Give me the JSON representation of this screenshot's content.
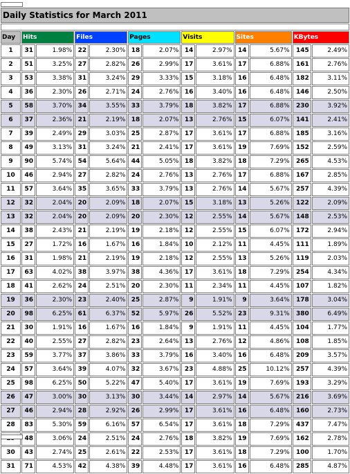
{
  "title": "Daily Statistics for March 2011",
  "headers": {
    "day": "Day",
    "hits": "Hits",
    "files": "Files",
    "pages": "Pages",
    "visits": "Visits",
    "sites": "Sites",
    "kbytes": "KBytes"
  },
  "colors": {
    "hits": "#008040",
    "files": "#0040ff",
    "pages": "#00e0ff",
    "visits": "#ffff00",
    "sites": "#ff8000",
    "kbytes": "#ff0000",
    "title_bg": "#c0c0c0",
    "highlight_row": "#d8d8e8"
  },
  "highlighted_days": [
    "5",
    "6",
    "12",
    "13",
    "19",
    "20",
    "26",
    "27"
  ],
  "rows": [
    {
      "day": "1",
      "hits": "31",
      "hits_pct": "1.98%",
      "files": "22",
      "files_pct": "2.30%",
      "pages": "18",
      "pages_pct": "2.07%",
      "visits": "14",
      "visits_pct": "2.97%",
      "sites": "14",
      "sites_pct": "5.67%",
      "kbytes": "145",
      "kbytes_pct": "2.49%"
    },
    {
      "day": "2",
      "hits": "51",
      "hits_pct": "3.25%",
      "files": "27",
      "files_pct": "2.82%",
      "pages": "26",
      "pages_pct": "2.99%",
      "visits": "17",
      "visits_pct": "3.61%",
      "sites": "17",
      "sites_pct": "6.88%",
      "kbytes": "161",
      "kbytes_pct": "2.76%"
    },
    {
      "day": "3",
      "hits": "53",
      "hits_pct": "3.38%",
      "files": "31",
      "files_pct": "3.24%",
      "pages": "29",
      "pages_pct": "3.33%",
      "visits": "15",
      "visits_pct": "3.18%",
      "sites": "16",
      "sites_pct": "6.48%",
      "kbytes": "182",
      "kbytes_pct": "3.11%"
    },
    {
      "day": "4",
      "hits": "36",
      "hits_pct": "2.30%",
      "files": "26",
      "files_pct": "2.71%",
      "pages": "24",
      "pages_pct": "2.76%",
      "visits": "16",
      "visits_pct": "3.40%",
      "sites": "16",
      "sites_pct": "6.48%",
      "kbytes": "146",
      "kbytes_pct": "2.50%"
    },
    {
      "day": "5",
      "hits": "58",
      "hits_pct": "3.70%",
      "files": "34",
      "files_pct": "3.55%",
      "pages": "33",
      "pages_pct": "3.79%",
      "visits": "18",
      "visits_pct": "3.82%",
      "sites": "17",
      "sites_pct": "6.88%",
      "kbytes": "230",
      "kbytes_pct": "3.92%"
    },
    {
      "day": "6",
      "hits": "37",
      "hits_pct": "2.36%",
      "files": "21",
      "files_pct": "2.19%",
      "pages": "18",
      "pages_pct": "2.07%",
      "visits": "13",
      "visits_pct": "2.76%",
      "sites": "15",
      "sites_pct": "6.07%",
      "kbytes": "141",
      "kbytes_pct": "2.41%"
    },
    {
      "day": "7",
      "hits": "39",
      "hits_pct": "2.49%",
      "files": "29",
      "files_pct": "3.03%",
      "pages": "25",
      "pages_pct": "2.87%",
      "visits": "17",
      "visits_pct": "3.61%",
      "sites": "17",
      "sites_pct": "6.88%",
      "kbytes": "185",
      "kbytes_pct": "3.16%"
    },
    {
      "day": "8",
      "hits": "49",
      "hits_pct": "3.13%",
      "files": "31",
      "files_pct": "3.24%",
      "pages": "21",
      "pages_pct": "2.41%",
      "visits": "17",
      "visits_pct": "3.61%",
      "sites": "19",
      "sites_pct": "7.69%",
      "kbytes": "152",
      "kbytes_pct": "2.59%"
    },
    {
      "day": "9",
      "hits": "90",
      "hits_pct": "5.74%",
      "files": "54",
      "files_pct": "5.64%",
      "pages": "44",
      "pages_pct": "5.05%",
      "visits": "18",
      "visits_pct": "3.82%",
      "sites": "18",
      "sites_pct": "7.29%",
      "kbytes": "265",
      "kbytes_pct": "4.53%"
    },
    {
      "day": "10",
      "hits": "46",
      "hits_pct": "2.94%",
      "files": "27",
      "files_pct": "2.82%",
      "pages": "24",
      "pages_pct": "2.76%",
      "visits": "13",
      "visits_pct": "2.76%",
      "sites": "17",
      "sites_pct": "6.88%",
      "kbytes": "167",
      "kbytes_pct": "2.85%"
    },
    {
      "day": "11",
      "hits": "57",
      "hits_pct": "3.64%",
      "files": "35",
      "files_pct": "3.65%",
      "pages": "33",
      "pages_pct": "3.79%",
      "visits": "13",
      "visits_pct": "2.76%",
      "sites": "14",
      "sites_pct": "5.67%",
      "kbytes": "257",
      "kbytes_pct": "4.39%"
    },
    {
      "day": "12",
      "hits": "32",
      "hits_pct": "2.04%",
      "files": "20",
      "files_pct": "2.09%",
      "pages": "18",
      "pages_pct": "2.07%",
      "visits": "15",
      "visits_pct": "3.18%",
      "sites": "13",
      "sites_pct": "5.26%",
      "kbytes": "122",
      "kbytes_pct": "2.09%"
    },
    {
      "day": "13",
      "hits": "32",
      "hits_pct": "2.04%",
      "files": "20",
      "files_pct": "2.09%",
      "pages": "20",
      "pages_pct": "2.30%",
      "visits": "12",
      "visits_pct": "2.55%",
      "sites": "14",
      "sites_pct": "5.67%",
      "kbytes": "148",
      "kbytes_pct": "2.53%"
    },
    {
      "day": "14",
      "hits": "38",
      "hits_pct": "2.43%",
      "files": "21",
      "files_pct": "2.19%",
      "pages": "19",
      "pages_pct": "2.18%",
      "visits": "12",
      "visits_pct": "2.55%",
      "sites": "15",
      "sites_pct": "6.07%",
      "kbytes": "172",
      "kbytes_pct": "2.94%"
    },
    {
      "day": "15",
      "hits": "27",
      "hits_pct": "1.72%",
      "files": "16",
      "files_pct": "1.67%",
      "pages": "16",
      "pages_pct": "1.84%",
      "visits": "10",
      "visits_pct": "2.12%",
      "sites": "11",
      "sites_pct": "4.45%",
      "kbytes": "111",
      "kbytes_pct": "1.89%"
    },
    {
      "day": "16",
      "hits": "31",
      "hits_pct": "1.98%",
      "files": "21",
      "files_pct": "2.19%",
      "pages": "19",
      "pages_pct": "2.18%",
      "visits": "12",
      "visits_pct": "2.55%",
      "sites": "13",
      "sites_pct": "5.26%",
      "kbytes": "119",
      "kbytes_pct": "2.03%"
    },
    {
      "day": "17",
      "hits": "63",
      "hits_pct": "4.02%",
      "files": "38",
      "files_pct": "3.97%",
      "pages": "38",
      "pages_pct": "4.36%",
      "visits": "17",
      "visits_pct": "3.61%",
      "sites": "18",
      "sites_pct": "7.29%",
      "kbytes": "254",
      "kbytes_pct": "4.34%"
    },
    {
      "day": "18",
      "hits": "41",
      "hits_pct": "2.62%",
      "files": "24",
      "files_pct": "2.51%",
      "pages": "20",
      "pages_pct": "2.30%",
      "visits": "11",
      "visits_pct": "2.34%",
      "sites": "11",
      "sites_pct": "4.45%",
      "kbytes": "107",
      "kbytes_pct": "1.82%"
    },
    {
      "day": "19",
      "hits": "36",
      "hits_pct": "2.30%",
      "files": "23",
      "files_pct": "2.40%",
      "pages": "25",
      "pages_pct": "2.87%",
      "visits": "9",
      "visits_pct": "1.91%",
      "sites": "9",
      "sites_pct": "3.64%",
      "kbytes": "178",
      "kbytes_pct": "3.04%"
    },
    {
      "day": "20",
      "hits": "98",
      "hits_pct": "6.25%",
      "files": "61",
      "files_pct": "6.37%",
      "pages": "52",
      "pages_pct": "5.97%",
      "visits": "26",
      "visits_pct": "5.52%",
      "sites": "23",
      "sites_pct": "9.31%",
      "kbytes": "380",
      "kbytes_pct": "6.49%"
    },
    {
      "day": "21",
      "hits": "30",
      "hits_pct": "1.91%",
      "files": "16",
      "files_pct": "1.67%",
      "pages": "16",
      "pages_pct": "1.84%",
      "visits": "9",
      "visits_pct": "1.91%",
      "sites": "11",
      "sites_pct": "4.45%",
      "kbytes": "104",
      "kbytes_pct": "1.77%"
    },
    {
      "day": "22",
      "hits": "40",
      "hits_pct": "2.55%",
      "files": "27",
      "files_pct": "2.82%",
      "pages": "23",
      "pages_pct": "2.64%",
      "visits": "13",
      "visits_pct": "2.76%",
      "sites": "12",
      "sites_pct": "4.86%",
      "kbytes": "108",
      "kbytes_pct": "1.85%"
    },
    {
      "day": "23",
      "hits": "59",
      "hits_pct": "3.77%",
      "files": "37",
      "files_pct": "3.86%",
      "pages": "33",
      "pages_pct": "3.79%",
      "visits": "16",
      "visits_pct": "3.40%",
      "sites": "16",
      "sites_pct": "6.48%",
      "kbytes": "209",
      "kbytes_pct": "3.57%"
    },
    {
      "day": "24",
      "hits": "57",
      "hits_pct": "3.64%",
      "files": "39",
      "files_pct": "4.07%",
      "pages": "32",
      "pages_pct": "3.67%",
      "visits": "23",
      "visits_pct": "4.88%",
      "sites": "25",
      "sites_pct": "10.12%",
      "kbytes": "257",
      "kbytes_pct": "4.39%"
    },
    {
      "day": "25",
      "hits": "98",
      "hits_pct": "6.25%",
      "files": "50",
      "files_pct": "5.22%",
      "pages": "47",
      "pages_pct": "5.40%",
      "visits": "17",
      "visits_pct": "3.61%",
      "sites": "19",
      "sites_pct": "7.69%",
      "kbytes": "193",
      "kbytes_pct": "3.29%"
    },
    {
      "day": "26",
      "hits": "47",
      "hits_pct": "3.00%",
      "files": "30",
      "files_pct": "3.13%",
      "pages": "30",
      "pages_pct": "3.44%",
      "visits": "14",
      "visits_pct": "2.97%",
      "sites": "14",
      "sites_pct": "5.67%",
      "kbytes": "216",
      "kbytes_pct": "3.69%"
    },
    {
      "day": "27",
      "hits": "46",
      "hits_pct": "2.94%",
      "files": "28",
      "files_pct": "2.92%",
      "pages": "26",
      "pages_pct": "2.99%",
      "visits": "17",
      "visits_pct": "3.61%",
      "sites": "16",
      "sites_pct": "6.48%",
      "kbytes": "160",
      "kbytes_pct": "2.73%"
    },
    {
      "day": "28",
      "hits": "83",
      "hits_pct": "5.30%",
      "files": "59",
      "files_pct": "6.16%",
      "pages": "57",
      "pages_pct": "6.54%",
      "visits": "17",
      "visits_pct": "3.61%",
      "sites": "18",
      "sites_pct": "7.29%",
      "kbytes": "437",
      "kbytes_pct": "7.47%"
    },
    {
      "day": "29",
      "hits": "48",
      "hits_pct": "3.06%",
      "files": "24",
      "files_pct": "2.51%",
      "pages": "24",
      "pages_pct": "2.76%",
      "visits": "18",
      "visits_pct": "3.82%",
      "sites": "19",
      "sites_pct": "7.69%",
      "kbytes": "162",
      "kbytes_pct": "2.78%"
    },
    {
      "day": "30",
      "hits": "43",
      "hits_pct": "2.74%",
      "files": "25",
      "files_pct": "2.61%",
      "pages": "22",
      "pages_pct": "2.53%",
      "visits": "17",
      "visits_pct": "3.61%",
      "sites": "18",
      "sites_pct": "7.29%",
      "kbytes": "100",
      "kbytes_pct": "1.70%"
    },
    {
      "day": "31",
      "hits": "71",
      "hits_pct": "4.53%",
      "files": "42",
      "files_pct": "4.38%",
      "pages": "39",
      "pages_pct": "4.48%",
      "visits": "17",
      "visits_pct": "3.61%",
      "sites": "16",
      "sites_pct": "6.48%",
      "kbytes": "285",
      "kbytes_pct": "4.87%"
    }
  ]
}
